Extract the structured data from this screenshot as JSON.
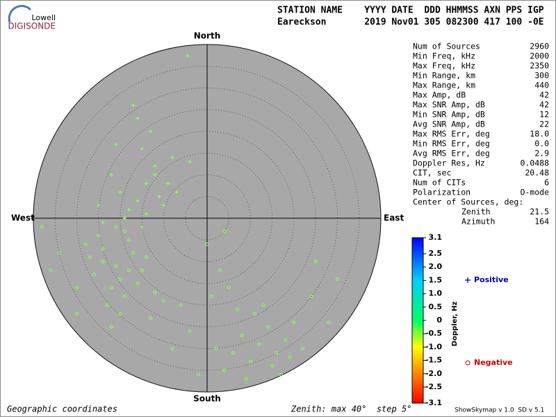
{
  "chart_data": {
    "type": "skymap",
    "logo": {
      "top": "Lowell",
      "bottom": "DIGISONDE"
    },
    "header": {
      "line1": "STATION NAME    YYYY DATE  DDD HHMMSS AXN PPS IGP",
      "line2": "Eareckson       2019 Nov01 305 082300 417 100 -0E"
    },
    "directions": {
      "north": "North",
      "south": "South",
      "west": "West",
      "east": "East"
    },
    "rlim": [
      0,
      40
    ],
    "rticks": [
      5,
      10,
      15,
      20,
      25,
      30,
      35,
      40
    ],
    "series": [
      {
        "name": "Negative",
        "marker": "o",
        "color": "#8cff5a",
        "label_color": "#cc0000",
        "x": [
          -20,
          -18,
          -22,
          -24,
          -16,
          -19,
          -21,
          -26,
          -14,
          -23,
          -17,
          -28,
          -12,
          -20,
          -25,
          -15,
          -22,
          -18,
          -30,
          -10,
          -27,
          -19,
          -13,
          -24,
          -21,
          12,
          8,
          16,
          10,
          14,
          6,
          18,
          20,
          4,
          11,
          15,
          9,
          22,
          13,
          7,
          17,
          2,
          24,
          5,
          19,
          -34,
          -36,
          -6,
          0,
          -2,
          3,
          25,
          30,
          -8,
          -38,
          4,
          -4,
          1,
          28,
          -30
        ],
        "y": [
          -14,
          -12,
          -16,
          -10,
          -15,
          -18,
          -11,
          -13,
          -9,
          -20,
          -8,
          -6,
          -17,
          -22,
          -4,
          -12,
          -25,
          -5,
          -16,
          -19,
          -9,
          -3,
          -23,
          -7,
          -2,
          -29,
          -27,
          -31,
          -33,
          -25,
          -31,
          -28,
          -24,
          -35,
          -22,
          -34,
          -37,
          -30,
          -20,
          -21,
          -36,
          -30,
          -18,
          -16,
          -32,
          -8,
          -12,
          -20,
          -6,
          -36,
          -12,
          -10,
          -14,
          -30,
          -2,
          -3,
          -26,
          -18,
          -24,
          -22
        ]
      },
      {
        "name": "Positive",
        "marker": "+",
        "color": "#8cff5a",
        "label_color": "#0000aa",
        "x": [
          -16,
          -14,
          -18,
          -12,
          -20,
          -10,
          -15,
          -22,
          -13,
          -17,
          -8,
          -19,
          -11,
          -14,
          -24,
          -9,
          -16,
          -21,
          -12,
          -25,
          -7,
          -15,
          -4,
          -4.5
        ],
        "y": [
          4,
          8,
          2,
          12,
          6,
          3,
          16,
          10,
          20,
          26,
          14,
          0,
          5,
          1,
          -1,
          8,
          23,
          17,
          10,
          3,
          6,
          -2,
          13,
          37.4
        ]
      }
    ],
    "stats": [
      [
        "Num of Sources",
        "2960"
      ],
      [
        "Min Freq, kHz",
        "2000"
      ],
      [
        "Max Freq, kHz",
        "2350"
      ],
      [
        "Min Range, km",
        "300"
      ],
      [
        "Max Range, km",
        "440"
      ],
      [
        "Max Amp, dB",
        "42"
      ],
      [
        "Max SNR Amp, dB",
        "42"
      ],
      [
        "Min SNR Amp, dB",
        "12"
      ],
      [
        "Avg SNR Amp, dB",
        "22"
      ],
      [
        "Max RMS Err, deg",
        "18.0"
      ],
      [
        "Min RMS Err, deg",
        "0.0"
      ],
      [
        "Avg RMS Err, deg",
        "2.9"
      ],
      [
        "Doppler Res, Hz",
        "0.0488"
      ],
      [
        "CIT, sec",
        "20.48"
      ],
      [
        "Num of CITs",
        "6"
      ],
      [
        "Polarization",
        "O-mode"
      ]
    ],
    "center_title": "Center of Sources, deg:",
    "center": [
      [
        "Zenith",
        "21.5"
      ],
      [
        "Azimuth",
        "164"
      ]
    ],
    "colorbar": {
      "label": "Doppler, Hz",
      "lim": [
        -3.1,
        3.1
      ],
      "ticks": [
        3.1,
        2.5,
        {
          "value": 2.0,
          "label": "2.0"
        },
        1.5,
        {
          "value": 1.0,
          "label": "1.0"
        },
        0.5,
        0,
        -0.5,
        {
          "value": -1.0,
          "label": "-1.0"
        },
        -1.5,
        {
          "value": -2.0,
          "label": "-2.0"
        },
        -2.5,
        -3.1
      ]
    },
    "footer": {
      "left": "Geographic coordinates",
      "middle": "Zenith: max 40°  step 5°",
      "right": "ShowSkymap v 1.0  SD v 5.1"
    }
  }
}
